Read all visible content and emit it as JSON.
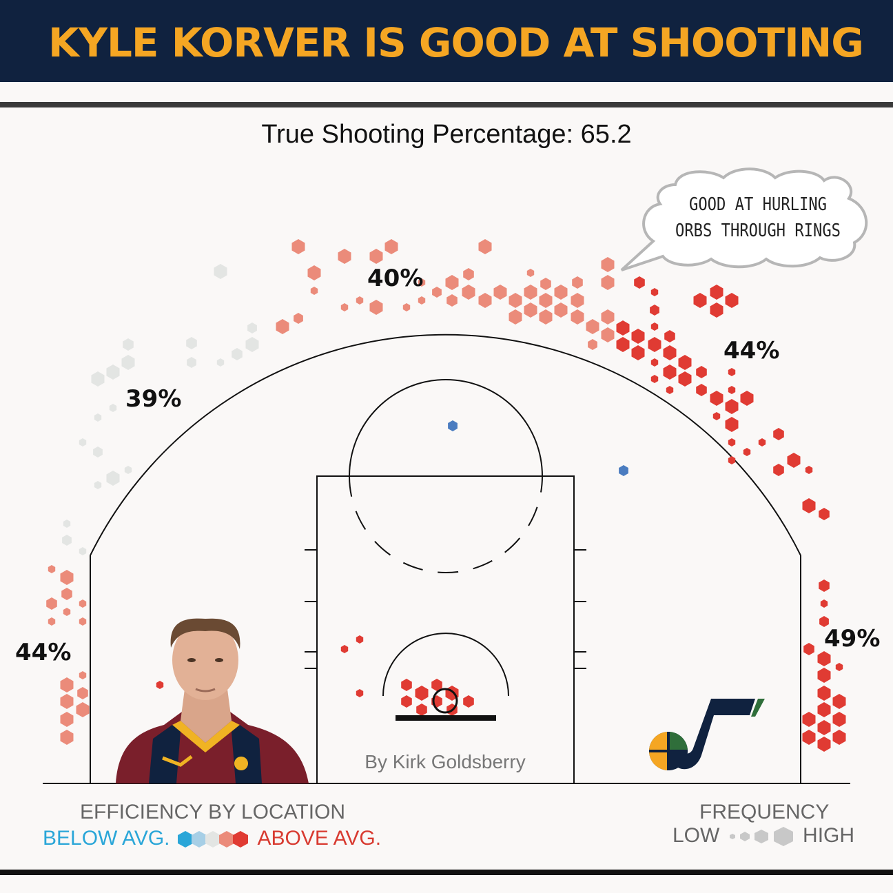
{
  "title": "KYLE KORVER IS GOOD AT SHOOTING",
  "subtitle": "True Shooting Percentage: 65.2",
  "speech_bubble": {
    "line1": "GOOD AT HURLING",
    "line2": "ORBS THROUGH RINGS"
  },
  "credit": "By Kirk Goldsberry",
  "legend": {
    "efficiency_title": "EFFICIENCY BY LOCATION",
    "below": "BELOW AVG.",
    "above": "ABOVE AVG.",
    "frequency_title": "FREQUENCY",
    "low": "LOW",
    "high": "HIGH"
  },
  "colors": {
    "banner": "#10223f",
    "title": "#f5a623",
    "well_above": "#e03b33",
    "above": "#eb8b7a",
    "average": "#e3e5e3",
    "below": "#4a7cc0",
    "jazz_navy": "#10223f",
    "jazz_gold": "#f5a623",
    "jazz_green": "#2f6e3a"
  },
  "images": {
    "player_photo": "player-headshot",
    "team_logo": "utah-jazz-logo"
  },
  "chart_data": {
    "type": "hexbin shot chart",
    "zones": [
      {
        "zone": "left corner three",
        "label": "44%",
        "fg_pct": 44
      },
      {
        "zone": "left wing three",
        "label": "39%",
        "fg_pct": 39
      },
      {
        "zone": "top of key three",
        "label": "40%",
        "fg_pct": 40
      },
      {
        "zone": "right wing three",
        "label": "44%",
        "fg_pct": 44
      },
      {
        "zone": "right corner three",
        "label": "49%",
        "fg_pct": 49
      }
    ]
  }
}
